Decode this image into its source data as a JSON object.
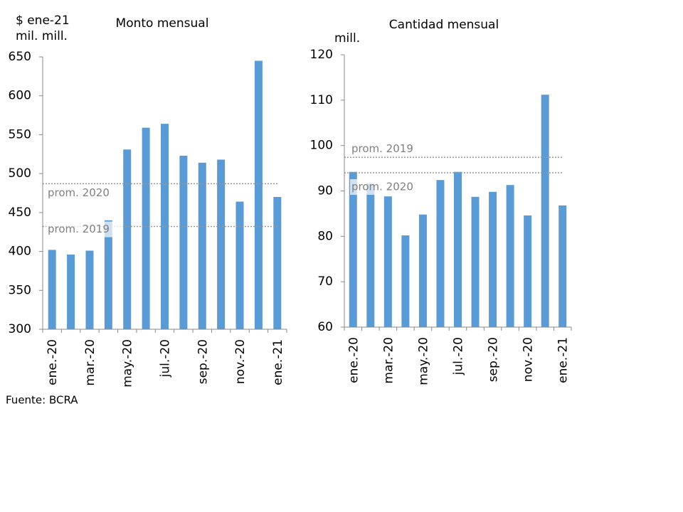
{
  "chart_data": [
    {
      "type": "bar",
      "title": "Monto mensual",
      "y_label": [
        "$ ene-21",
        "mil. mill."
      ],
      "categories": [
        "ene.-20",
        null,
        "mar.-20",
        null,
        "may.-20",
        null,
        "jul.-20",
        null,
        "sep.-20",
        null,
        "nov.-20",
        null,
        "ene.-21"
      ],
      "values": [
        402,
        396,
        401,
        440,
        531,
        559,
        564,
        523,
        514,
        518,
        464,
        645,
        470
      ],
      "color": "#5b9bd5",
      "ylim": [
        300,
        650
      ],
      "yticks": [
        300,
        350,
        400,
        450,
        500,
        550,
        600,
        650
      ],
      "reference_lines": [
        {
          "label": "prom. 2020",
          "value": 487
        },
        {
          "label": "prom. 2019",
          "value": 432
        }
      ]
    },
    {
      "type": "bar",
      "title": "Cantidad mensual",
      "y_label": [
        "mill."
      ],
      "categories": [
        "ene.-20",
        null,
        "mar.-20",
        null,
        "may.-20",
        null,
        "jul.-20",
        null,
        "sep.-20",
        null,
        "nov.-20",
        null,
        "ene.-21"
      ],
      "values": [
        94.2,
        91.6,
        88.8,
        80.2,
        84.8,
        92.4,
        94.2,
        88.7,
        89.8,
        91.3,
        84.6,
        111.2,
        86.8
      ],
      "color": "#5b9bd5",
      "ylim": [
        60,
        120
      ],
      "yticks": [
        60,
        70,
        80,
        90,
        100,
        110,
        120
      ],
      "reference_lines": [
        {
          "label": "prom. 2019",
          "value": 97.4
        },
        {
          "label": "prom. 2020",
          "value": 94.0
        }
      ]
    }
  ],
  "source": "Fuente: BCRA"
}
